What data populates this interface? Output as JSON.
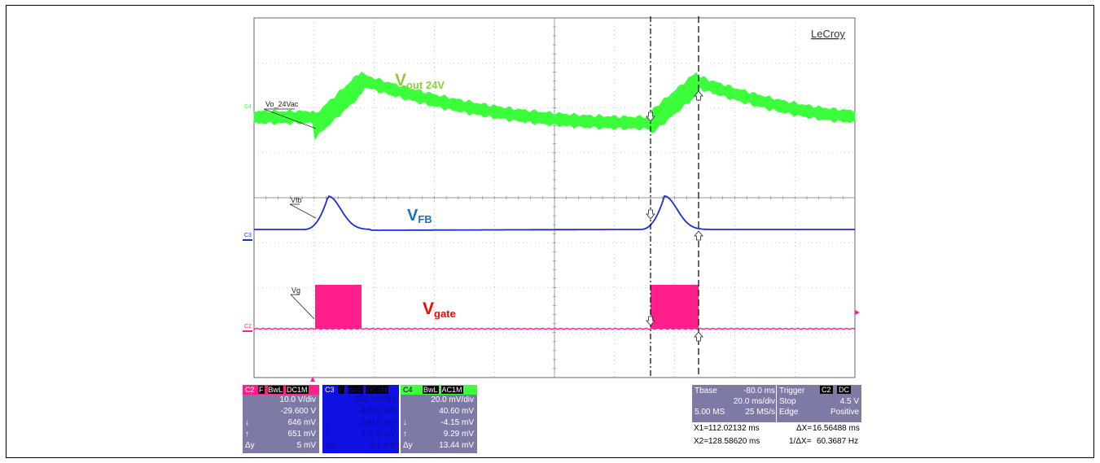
{
  "brand": "LeCroy",
  "colors": {
    "vout": "#3cff3c",
    "vfb": "#1a2fd0",
    "vgate": "#ff1f8a",
    "grid": "#7a7a7a",
    "panel_bg": "#7e7aa6",
    "c3_panel_bg": "#1010e0",
    "vout_label": "#8ccd3c",
    "vfb_label": "#1c6fc0",
    "vgate_label": "#ff0000"
  },
  "traces": {
    "vout": {
      "label": "Vo_24Vac",
      "channel": "C4",
      "annotation_main": "V",
      "annotation_sub": "out  24V"
    },
    "vfb": {
      "label": "Vfb",
      "channel": "C3",
      "annotation_main": "V",
      "annotation_sub": "FB"
    },
    "vgate": {
      "label": "Vg",
      "channel": "C2",
      "annotation_main": "V",
      "annotation_sub": "gate"
    }
  },
  "channel_panels": [
    {
      "id": "c2",
      "header": [
        "C2",
        "F",
        "BwL",
        "DC1M"
      ],
      "rows": [
        [
          "",
          "10.0 V/div"
        ],
        [
          "",
          "-29.600 V"
        ],
        [
          "↓",
          "646 mV"
        ],
        [
          "↑",
          "651 mV"
        ],
        [
          "Δy",
          "5 mV"
        ]
      ]
    },
    {
      "id": "c3",
      "header": [
        "C3",
        "F",
        "BwL",
        "DC1M"
      ],
      "rows": [
        [
          "",
          "500 mV/div"
        ],
        [
          "",
          "-420.0 mV"
        ],
        [
          "↓",
          "280.0 mV"
        ],
        [
          "↑",
          "276.9 mV"
        ],
        [
          "Δy",
          "3.1 mV"
        ]
      ]
    },
    {
      "id": "c4",
      "header": [
        "C4",
        "",
        "BwL",
        "AC1M"
      ],
      "rows": [
        [
          "",
          "20.0 mV/div"
        ],
        [
          "",
          "40.60 mV"
        ],
        [
          "↓",
          "-4.15 mV"
        ],
        [
          "↑",
          "9.29 mV"
        ],
        [
          "Δy",
          "13.44 mV"
        ]
      ]
    }
  ],
  "timebase": {
    "label": "Tbase",
    "delay": "-80.0 ms",
    "per_div": "20.0 ms/div",
    "samples": "5.00 MS",
    "rate": "25 MS/s"
  },
  "trigger": {
    "label": "Trigger",
    "source": "C2",
    "coupling": "DC",
    "mode": "Stop",
    "level": "4.5 V",
    "type": "Edge",
    "slope": "Positive"
  },
  "cursors": {
    "x1_label": "X1=",
    "x1": "112.02132 ms",
    "dx_label": "ΔX=",
    "dx": "16.56488 ms",
    "x2_label": "X2=",
    "x2": "128.58620 ms",
    "inv_dx_label": "1/ΔX=",
    "inv_dx": "60.3687 Hz"
  }
}
